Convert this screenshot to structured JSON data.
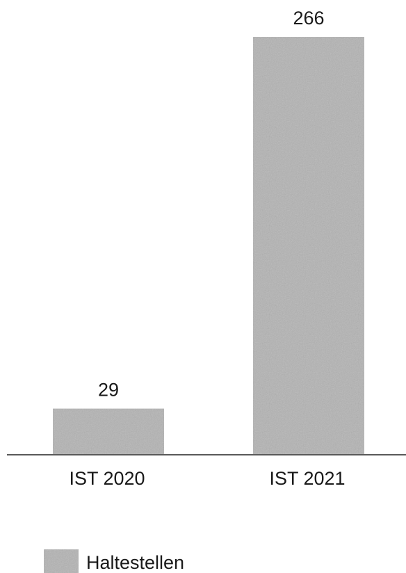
{
  "chart_data": {
    "type": "bar",
    "categories": [
      "IST 2020",
      "IST 2021"
    ],
    "series": [
      {
        "name": "Haltestellen",
        "values": [
          29,
          266
        ]
      }
    ],
    "data_labels": [
      "29",
      "266"
    ],
    "ylim": [
      0,
      266
    ],
    "grid": false,
    "legend_position": "bottom-left",
    "bar_color": "#b3b3b3"
  }
}
